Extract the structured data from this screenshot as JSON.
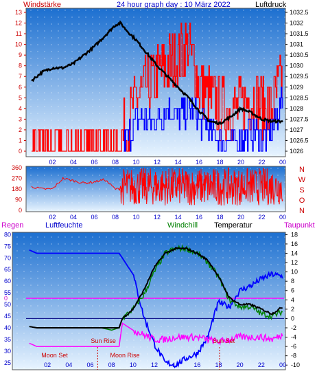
{
  "panel1": {
    "left_label": "Windstärke",
    "title": "24 hour graph day : 10 März 2022",
    "right_label": "Luftdruck",
    "left_ticks": [
      "13",
      "12",
      "11",
      "10",
      "9",
      "8",
      "7",
      "6",
      "5",
      "4",
      "3",
      "2",
      "1",
      "0"
    ],
    "right_ticks": [
      "1032.5",
      "1032",
      "1031.5",
      "1031",
      "1030.5",
      "1030",
      "1029.5",
      "1029",
      "1028.5",
      "1028",
      "1027.5",
      "1027",
      "1026.5",
      "1026"
    ],
    "x_ticks": [
      "02",
      "04",
      "06",
      "08",
      "10",
      "12",
      "14",
      "16",
      "18",
      "20",
      "22",
      "00"
    ]
  },
  "panel2": {
    "left_ticks": [
      "360",
      "270",
      "180",
      "90",
      "0"
    ],
    "directions": [
      "N",
      "W",
      "S",
      "O",
      "N"
    ],
    "x_ticks": [
      "02",
      "04",
      "06",
      "08",
      "10",
      "12",
      "14",
      "16",
      "18",
      "20",
      "22",
      "00"
    ]
  },
  "panel3": {
    "labels": {
      "rain": "Regen",
      "humidity": "Luftfeuchte",
      "windchill": "Windchill",
      "temperature": "Temperatur",
      "dewpoint": "Taupunkt"
    },
    "left_ticks": [
      "80",
      "75",
      "70",
      "65",
      "60",
      "55",
      "50",
      "45",
      "40",
      "35",
      "30",
      "25"
    ],
    "rain_zero": "0",
    "right_ticks": [
      "18",
      "16",
      "14",
      "12",
      "10",
      "8",
      "6",
      "4",
      "2",
      "0",
      "-2",
      "-4",
      "-6",
      "-8",
      "-10"
    ],
    "x_ticks": [
      "02",
      "04",
      "06",
      "08",
      "10",
      "12",
      "14",
      "16",
      "18",
      "20",
      "22",
      "00"
    ],
    "annotations": {
      "moon_set": "Moon Set",
      "sun_rise": "Sun Rise",
      "moon_rise": "Moon Rise",
      "sun_set": "Sun Set"
    }
  },
  "colors": {
    "red": "#ff0000",
    "blue": "#0000ff",
    "black": "#000000",
    "green": "#008000",
    "magenta": "#ff00ff",
    "label_blue": "#0000cc",
    "label_magenta": "#cc00cc",
    "label_green": "#008000",
    "axis_red": "#cc0000",
    "bg_top": "#1c6fd0",
    "bg_bottom": "#e8f4ff"
  },
  "chart_data": [
    {
      "type": "line",
      "series": [
        {
          "color": "#000000",
          "axis": "right",
          "x": [
            0,
            1,
            2,
            3,
            4,
            5,
            6,
            7,
            8,
            8.5,
            9,
            10,
            11,
            12,
            13,
            14,
            15,
            16,
            17,
            18,
            19,
            20,
            21,
            22,
            23,
            24
          ],
          "values": [
            1029.3,
            1029.7,
            1029.9,
            1029.9,
            1030.1,
            1030.5,
            1030.9,
            1031.4,
            1031.9,
            1032.0,
            1031.7,
            1031.2,
            1030.6,
            1030.0,
            1029.5,
            1029.0,
            1028.5,
            1027.9,
            1027.4,
            1027.3,
            1027.6,
            1028.0,
            1027.8,
            1027.5,
            1027.4,
            1027.4
          ]
        },
        {
          "color": "#ff0000",
          "axis": "left",
          "x": [
            0,
            1,
            2,
            3,
            4,
            5,
            6,
            7,
            8,
            9,
            10,
            11,
            12,
            13,
            14,
            15,
            16,
            17,
            18,
            19,
            20,
            21,
            22,
            23,
            24
          ],
          "values": [
            0,
            0,
            0,
            0,
            0,
            0,
            0,
            0,
            0,
            2,
            5,
            6,
            7,
            8,
            9,
            10,
            6,
            5,
            4,
            4,
            4,
            5,
            4,
            4,
            7
          ]
        },
        {
          "color": "#0000ff",
          "axis": "left",
          "x": [
            0,
            1,
            2,
            3,
            4,
            5,
            6,
            7,
            8,
            9,
            10,
            11,
            12,
            13,
            14,
            15,
            16,
            17,
            18,
            19,
            20,
            21,
            22,
            23,
            24
          ],
          "values": [
            0,
            0,
            0,
            0,
            0,
            0,
            0,
            0,
            0,
            1,
            3,
            3,
            3,
            4,
            3,
            4,
            3,
            2,
            1,
            1,
            1,
            2,
            1,
            2,
            5
          ]
        }
      ],
      "ylim_left": [
        0,
        13
      ],
      "ylim_right": [
        1026,
        1032.5
      ],
      "xlim": [
        0,
        24
      ]
    },
    {
      "type": "line",
      "series": [
        {
          "color": "#ff0000",
          "x": [
            0,
            1,
            2,
            3,
            4,
            5,
            6,
            7,
            8,
            9,
            10,
            11,
            12,
            13,
            14,
            15,
            16,
            17,
            18,
            19,
            20,
            21,
            22,
            23,
            24
          ],
          "values": [
            200,
            180,
            180,
            270,
            250,
            230,
            240,
            260,
            180,
            180,
            200,
            190,
            210,
            200,
            200,
            190,
            200,
            210,
            230,
            190,
            210,
            230,
            240,
            230,
            220
          ]
        }
      ],
      "ylim": [
        0,
        360
      ],
      "xlim": [
        0,
        24
      ]
    },
    {
      "type": "line",
      "series": [
        {
          "color": "#0000ff",
          "axis": "left",
          "x": [
            0,
            1,
            2,
            3,
            4,
            5,
            6,
            7,
            8,
            8.7,
            9,
            10,
            11,
            12,
            13,
            14,
            15,
            16,
            17,
            17.5,
            18,
            19,
            20,
            21,
            22,
            23,
            24
          ],
          "values": [
            74,
            72,
            72,
            72,
            72,
            72,
            72,
            72,
            72,
            72,
            70,
            63,
            45,
            33,
            25,
            24,
            27,
            29,
            36,
            44,
            51,
            49,
            56,
            58,
            61,
            63,
            62
          ]
        },
        {
          "color": "#000000",
          "axis": "right",
          "x": [
            0,
            1,
            2,
            3,
            4,
            5,
            6,
            7,
            8,
            8.7,
            9,
            10,
            11,
            12,
            13,
            14,
            15,
            16,
            17,
            18,
            19,
            20,
            21,
            22,
            23,
            24
          ],
          "values": [
            -1.6,
            -2,
            -2,
            -2,
            -2,
            -2,
            -2,
            -2,
            -2,
            -2,
            0,
            2,
            6,
            11,
            14,
            15,
            15,
            14,
            12.5,
            9,
            4.5,
            3,
            3,
            2,
            1,
            2.5
          ]
        },
        {
          "color": "#008000",
          "axis": "right",
          "x": [
            0,
            1,
            2,
            3,
            4,
            5,
            6,
            7,
            8,
            8.7,
            9,
            10,
            11,
            12,
            13,
            14,
            15,
            16,
            17,
            18,
            19,
            20,
            21,
            22,
            23,
            24
          ],
          "values": [
            -1.6,
            -2,
            -2,
            -2,
            -2,
            -2,
            -2,
            -2,
            -2.5,
            -2,
            0,
            2,
            5,
            10,
            14,
            15,
            15,
            14,
            12,
            9,
            4,
            2.5,
            2.5,
            1,
            0.5,
            1.5
          ]
        },
        {
          "color": "#ff00ff",
          "axis": "right",
          "x": [
            0,
            1,
            2,
            3,
            4,
            5,
            6,
            7,
            8,
            8.7,
            9,
            10,
            11,
            12,
            13,
            14,
            15,
            16,
            17,
            18,
            19,
            20,
            21,
            22,
            23,
            24
          ],
          "values": [
            -5,
            -6,
            -6,
            -6,
            -6,
            -6,
            -6,
            -6,
            -6,
            -6,
            -1,
            -2.5,
            -3.5,
            -4.5,
            -4.5,
            -4,
            -4,
            -4,
            -4.5,
            -5,
            -4.5,
            -4,
            -4,
            -4,
            -4.5,
            -3.5
          ]
        },
        {
          "color": "#ff00ff",
          "axis": "rain",
          "x": [
            0,
            24
          ],
          "values": [
            0,
            0
          ]
        }
      ],
      "ylim_left": [
        22,
        81
      ],
      "ylim_right": [
        -11,
        18.5
      ],
      "xlim": [
        0,
        24
      ],
      "events": [
        {
          "label": "Moon Set",
          "x": 1.3
        },
        {
          "label": "Sun Rise",
          "x": 6.7
        },
        {
          "label": "Moon Rise",
          "x": 8.5
        },
        {
          "label": "Sun Set",
          "x": 18.1
        }
      ]
    }
  ]
}
